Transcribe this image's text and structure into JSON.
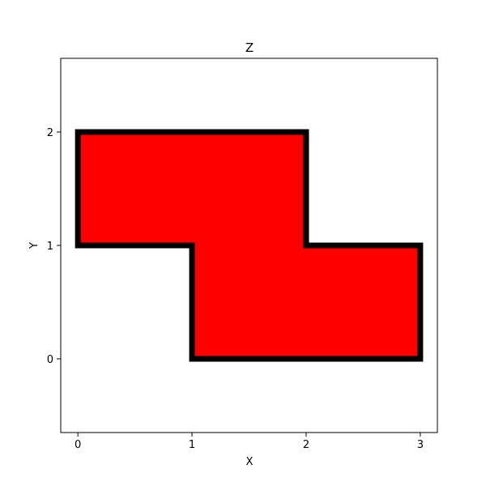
{
  "chart_data": {
    "type": "polygon",
    "title": "Z",
    "xlabel": "X",
    "ylabel": "Y",
    "xlim": [
      -0.15,
      3.15
    ],
    "ylim": [
      -0.65,
      2.65
    ],
    "xticks": [
      0,
      1,
      2,
      3
    ],
    "yticks": [
      0,
      1,
      2
    ],
    "grid": false,
    "shape": {
      "name": "Z",
      "vertices": [
        [
          0,
          2
        ],
        [
          2,
          2
        ],
        [
          2,
          1
        ],
        [
          3,
          1
        ],
        [
          3,
          0
        ],
        [
          1,
          0
        ],
        [
          1,
          1
        ],
        [
          0,
          1
        ]
      ],
      "fill_color": "#ff0000",
      "edge_color": "#000000"
    }
  }
}
